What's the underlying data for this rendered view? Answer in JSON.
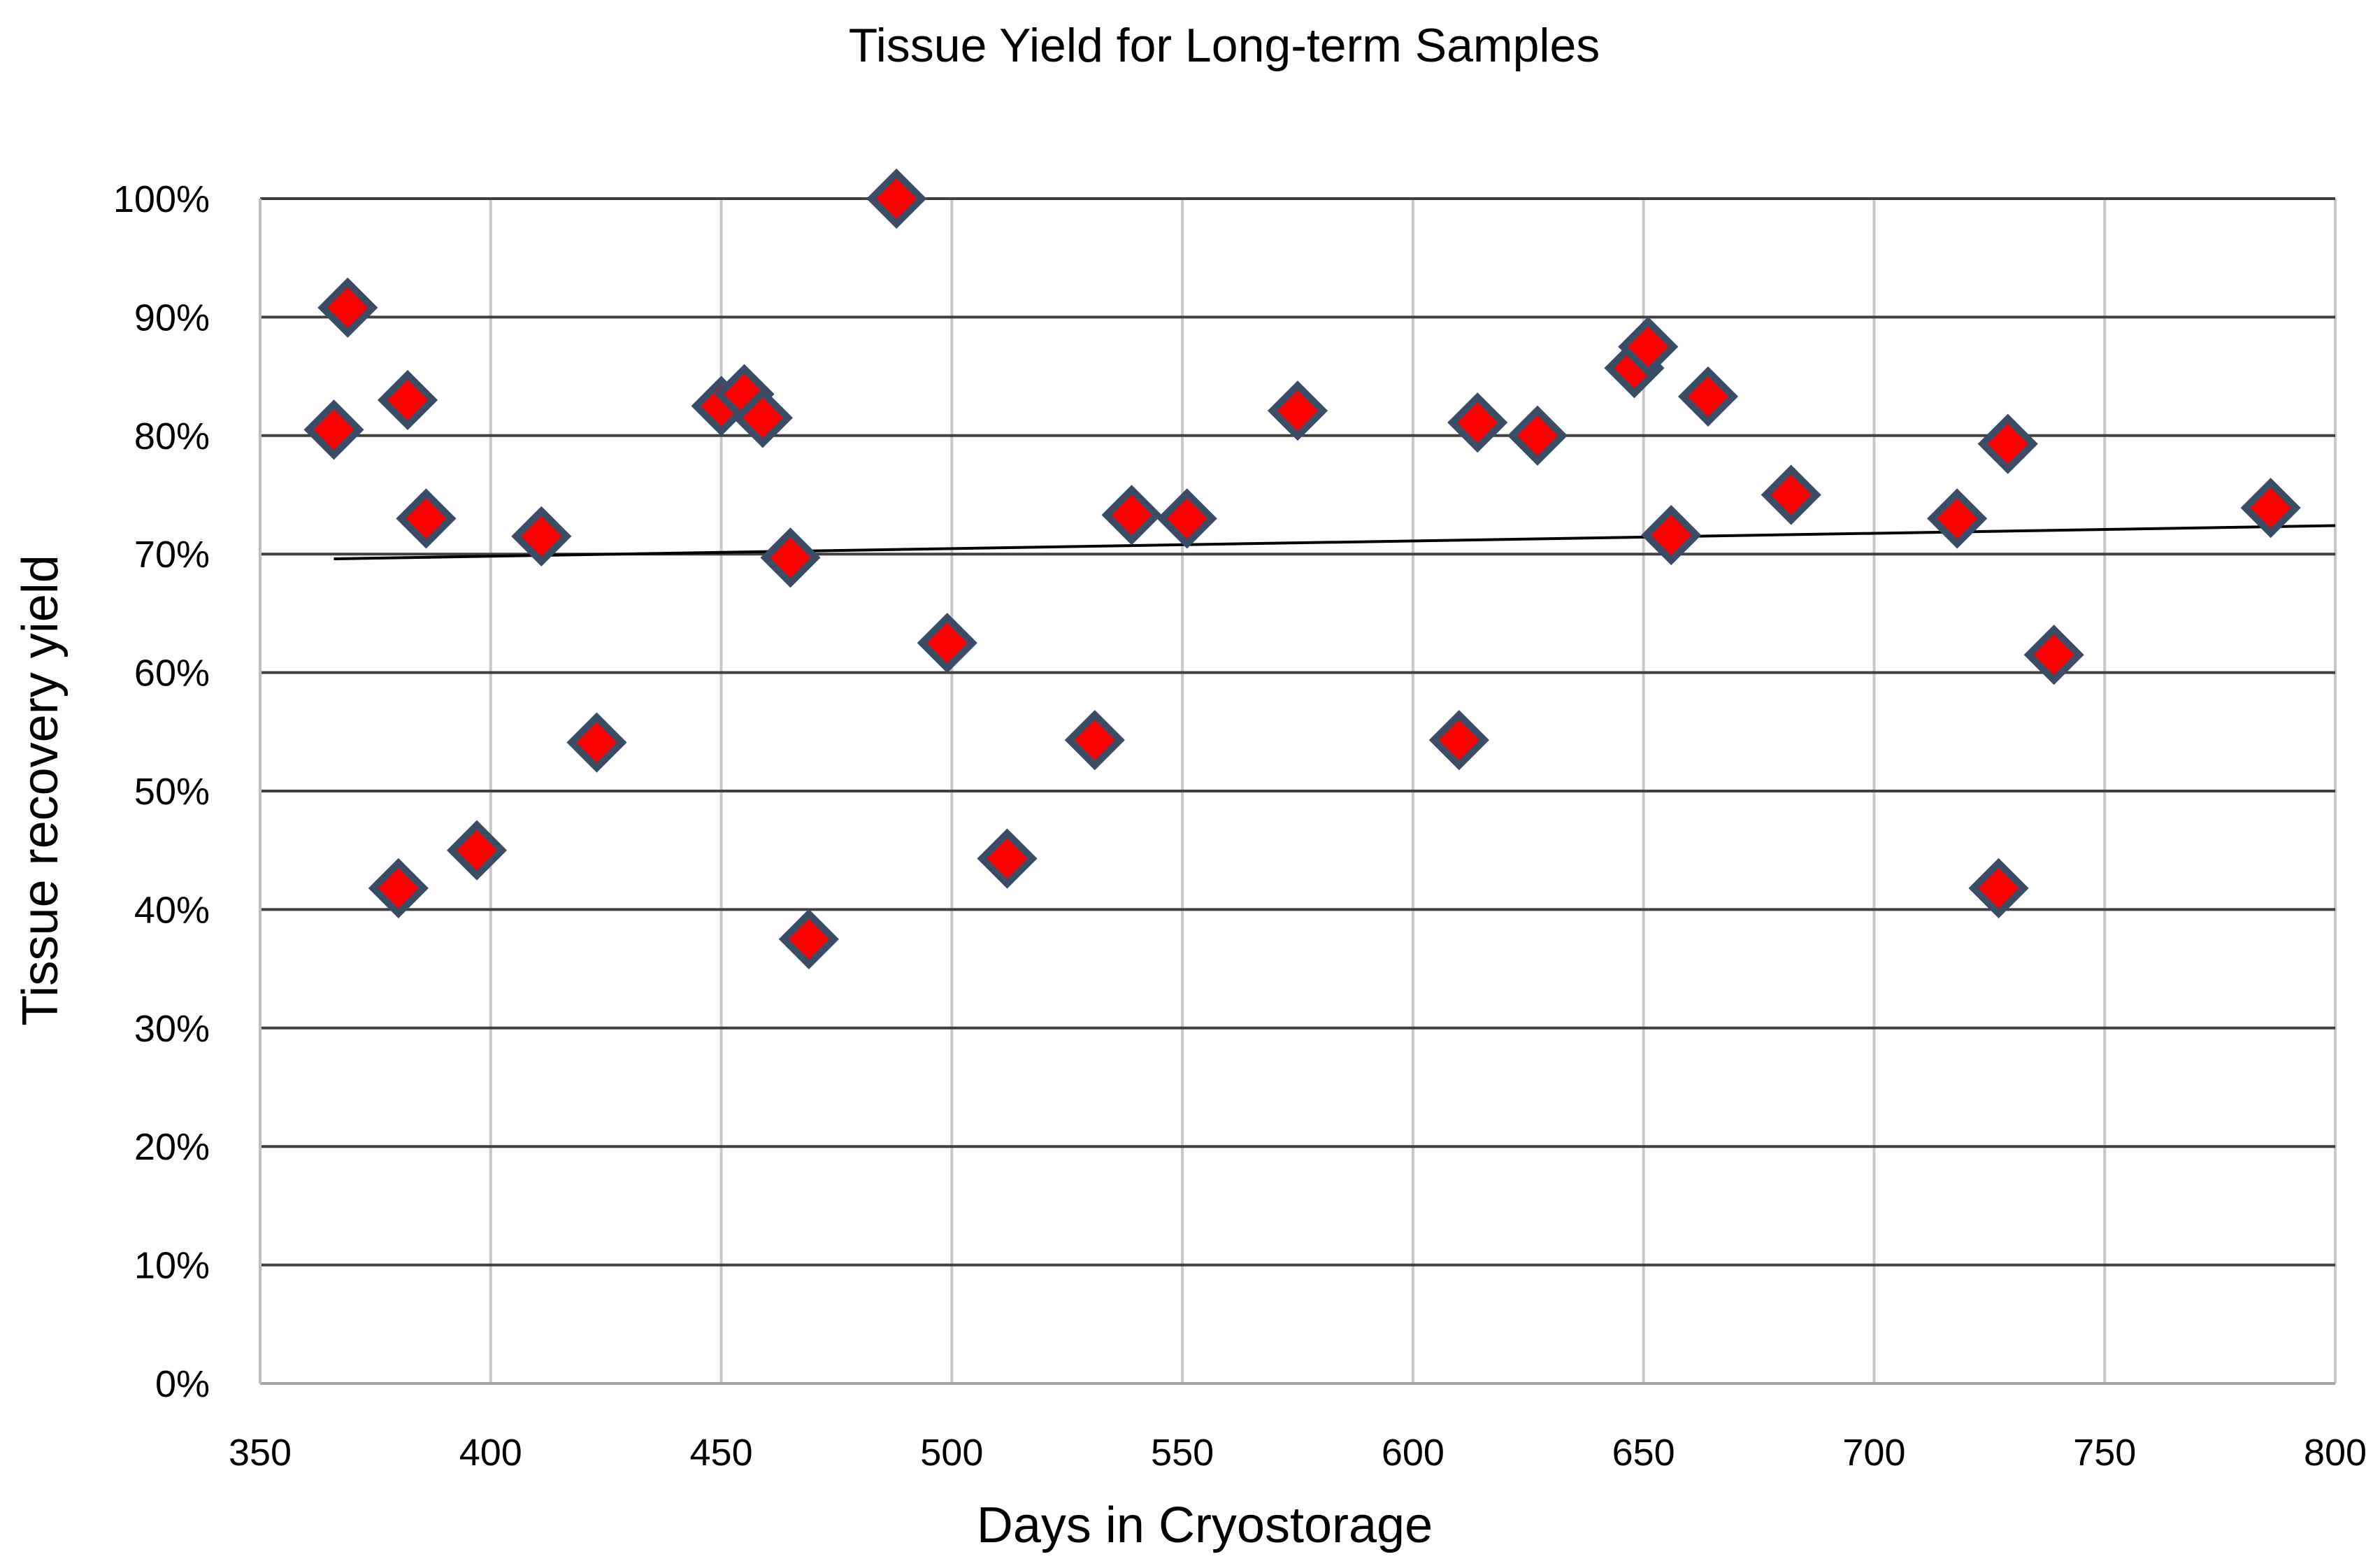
{
  "chart_data": {
    "type": "scatter",
    "title": "Tissue Yield for Long-term Samples",
    "xlabel": "Days in Cryostorage",
    "ylabel": "Tissue recovery yield",
    "xlim": [
      350,
      800
    ],
    "ylim": [
      0,
      1
    ],
    "x_ticks": [
      350,
      400,
      450,
      500,
      550,
      600,
      650,
      700,
      750,
      800
    ],
    "y_ticks": [
      0,
      0.1,
      0.2,
      0.3,
      0.4,
      0.5,
      0.6,
      0.7,
      0.8,
      0.9,
      1.0
    ],
    "x_tick_labels": [
      "350",
      "400",
      "450",
      "500",
      "550",
      "600",
      "650",
      "700",
      "750",
      "800"
    ],
    "y_tick_labels": [
      "0%",
      "10%",
      "20%",
      "30%",
      "40%",
      "50%",
      "60%",
      "70%",
      "80%",
      "90%",
      "100%"
    ],
    "grid": {
      "vertical": true,
      "horizontal": true
    },
    "legend": "none",
    "marker": {
      "shape": "diamond",
      "fill": "#ff0000",
      "stroke": "#3a4d66"
    },
    "colors": {
      "vertical_grid": "#c8c8c8",
      "horizontal_grid": "#404040",
      "trendline": "#000000"
    },
    "series": [
      {
        "points": [
          [
            366,
            0.805
          ],
          [
            369,
            0.908
          ],
          [
            380,
            0.418
          ],
          [
            382,
            0.83
          ],
          [
            386,
            0.73
          ],
          [
            397,
            0.45
          ],
          [
            411,
            0.715
          ],
          [
            423,
            0.541
          ],
          [
            450,
            0.825
          ],
          [
            455,
            0.835
          ],
          [
            459,
            0.815
          ],
          [
            465,
            0.697
          ],
          [
            469,
            0.375
          ],
          [
            488,
            1.0
          ],
          [
            499,
            0.625
          ],
          [
            512,
            0.443
          ],
          [
            531,
            0.543
          ],
          [
            539,
            0.733
          ],
          [
            551,
            0.73
          ],
          [
            575,
            0.821
          ],
          [
            610,
            0.543
          ],
          [
            614,
            0.811
          ],
          [
            627,
            0.8
          ],
          [
            648,
            0.857
          ],
          [
            651,
            0.875
          ],
          [
            656,
            0.716
          ],
          [
            664,
            0.833
          ],
          [
            682,
            0.75
          ],
          [
            718,
            0.73
          ],
          [
            727,
            0.418
          ],
          [
            729,
            0.793
          ],
          [
            739,
            0.615
          ],
          [
            786,
            0.739
          ]
        ]
      }
    ],
    "trendline": {
      "type": "linear",
      "from": [
        366,
        0.696
      ],
      "to": [
        800,
        0.724
      ]
    }
  }
}
